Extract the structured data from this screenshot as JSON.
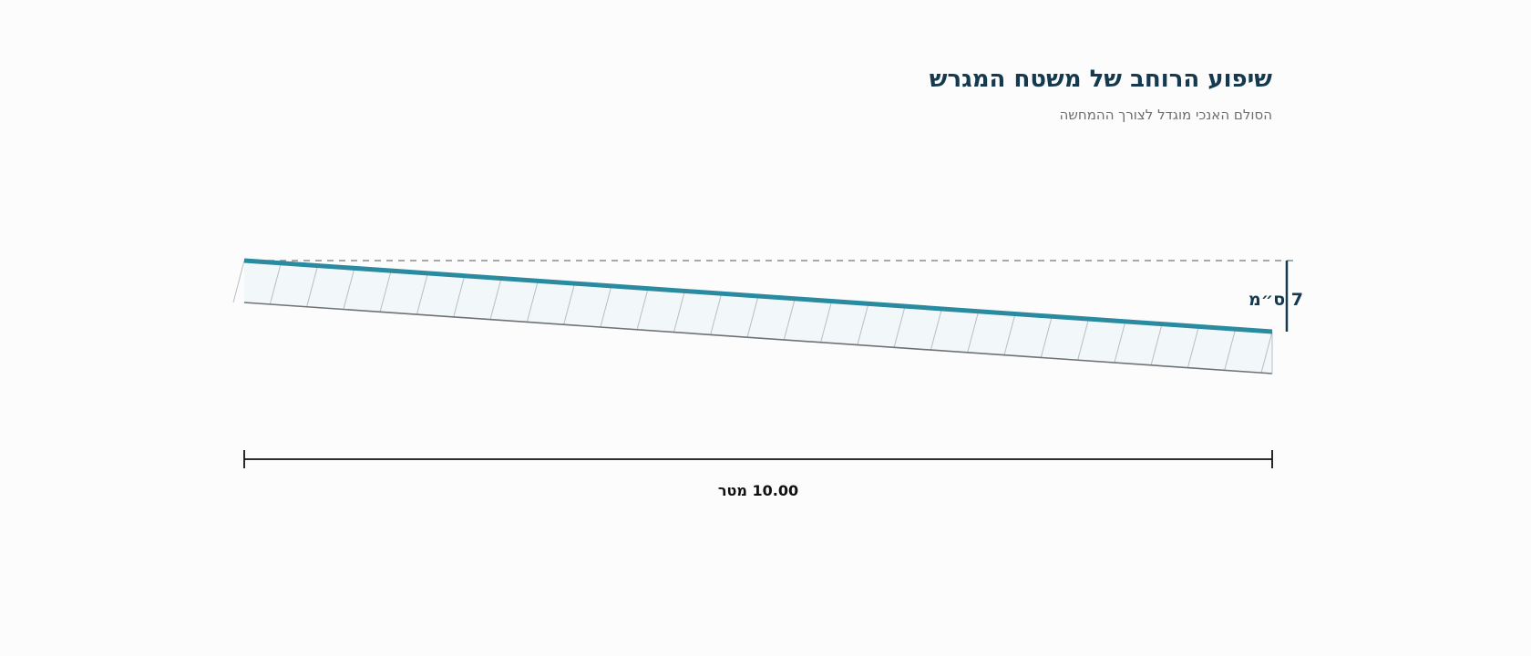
{
  "diagram": {
    "title": "שיפוע הרוחב של משטח המגרש",
    "subtitle": "הסולם האנכי מוגדל לצורך ההמחשה",
    "height_label": "7 ס״מ",
    "width_label": "10.00 מטר",
    "slope": {
      "width_m": 10.0,
      "drop_cm": 7
    },
    "colors": {
      "surface": "#2a8aa0",
      "title": "#153a4f",
      "subtitle": "#6a6f74",
      "section_fill": "#f2f7fa",
      "hatch": "#b9bec2",
      "dimension": "#111111",
      "height_dimension": "#153a4f"
    },
    "hatch_count": 28
  }
}
